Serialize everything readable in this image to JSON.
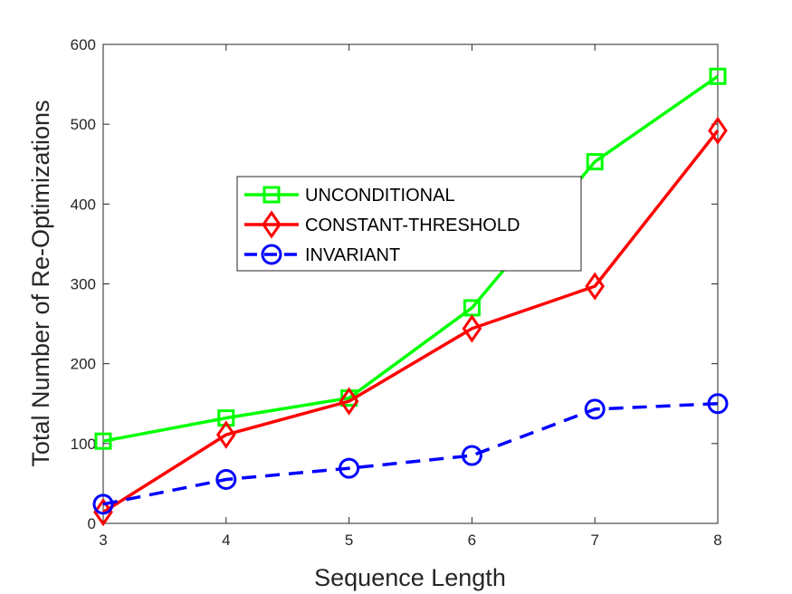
{
  "chart_data": {
    "type": "line",
    "xlabel": "Sequence Length",
    "ylabel": "Total Number of Re-Optimizations",
    "xlim": [
      3,
      8
    ],
    "ylim": [
      0,
      600
    ],
    "xticks": [
      3,
      4,
      5,
      6,
      7,
      8
    ],
    "yticks": [
      0,
      100,
      200,
      300,
      400,
      500,
      600
    ],
    "grid": false,
    "legend_position": "center",
    "x": [
      3,
      4,
      5,
      6,
      7,
      8
    ],
    "series": [
      {
        "name": "UNCONDITIONAL",
        "values": [
          103,
          132,
          157,
          270,
          453,
          560
        ],
        "color": "#00ff00",
        "marker": "square",
        "line": "solid"
      },
      {
        "name": "CONSTANT-THRESHOLD",
        "values": [
          14,
          111,
          153,
          244,
          297,
          492
        ],
        "color": "#ff0000",
        "marker": "diamond",
        "line": "solid"
      },
      {
        "name": "INVARIANT",
        "values": [
          24,
          55,
          69,
          85,
          143,
          150
        ],
        "color": "#0000ff",
        "marker": "circle",
        "line": "dashed"
      }
    ]
  }
}
